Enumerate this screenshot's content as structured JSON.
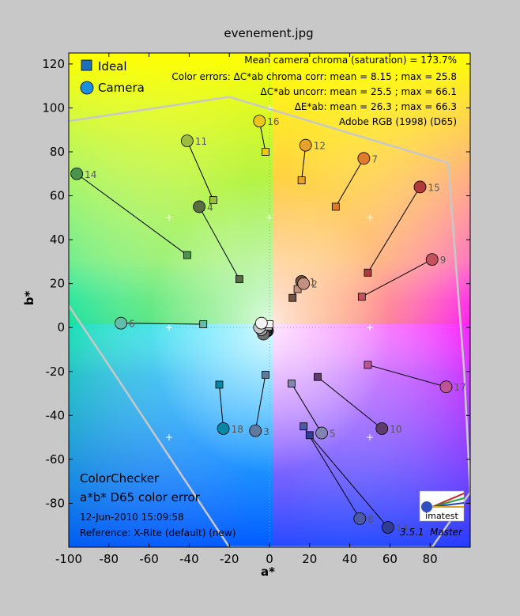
{
  "title": "evenement.jpg",
  "chart_data": {
    "type": "scatter",
    "xlabel": "a*",
    "ylabel": "b*",
    "xlim": [
      -100,
      100
    ],
    "ylim": [
      -100,
      125
    ],
    "xticks": [
      -100,
      -80,
      -60,
      -40,
      -20,
      0,
      20,
      40,
      60,
      80
    ],
    "yticks": [
      -80,
      -60,
      -40,
      -20,
      0,
      20,
      40,
      60,
      80,
      100,
      120
    ],
    "legend": {
      "position": "top-left",
      "items": [
        {
          "name": "Ideal",
          "marker": "square",
          "color": "#1a6fbf"
        },
        {
          "name": "Camera",
          "marker": "circle",
          "color": "#1a8fe0"
        }
      ]
    },
    "annotations": [
      "Mean camera chroma (saturation) = 173.7%",
      "Color errors: ΔC*ab chroma corr:  mean = 8.15 ;  max = 25.8",
      "ΔC*ab uncorr:  mean = 25.5 ;  max = 66.1",
      "ΔE*ab:  mean = 26.3 ;  max = 66.3",
      "Adobe RGB (1998) (D65)"
    ],
    "patches": [
      {
        "id": "",
        "ideal": [
          -1.5,
          -1.5
        ],
        "camera": [
          -1,
          -1.5
        ],
        "color": "#2a2a2a"
      },
      {
        "id": "",
        "ideal": [
          -1,
          -1
        ],
        "camera": [
          -2,
          -2
        ],
        "color": "#4a4a4a"
      },
      {
        "id": "",
        "ideal": [
          -1,
          -0.5
        ],
        "camera": [
          -3,
          -3
        ],
        "color": "#6e6e6e"
      },
      {
        "id": "",
        "ideal": [
          -1,
          0
        ],
        "camera": [
          -4,
          -1
        ],
        "color": "#9a9a9a"
      },
      {
        "id": "",
        "ideal": [
          -0.5,
          0.5
        ],
        "camera": [
          -5,
          0
        ],
        "color": "#c8c8c8"
      },
      {
        "id": "",
        "ideal": [
          0,
          1.5
        ],
        "camera": [
          -4,
          2
        ],
        "color": "#f2f2f2"
      },
      {
        "id": "1",
        "ideal": [
          11.5,
          13.5
        ],
        "camera": [
          16,
          21
        ],
        "color": "#73523f"
      },
      {
        "id": "2",
        "ideal": [
          14,
          17.5
        ],
        "camera": [
          17,
          20
        ],
        "color": "#c2917f"
      },
      {
        "id": "3",
        "ideal": [
          -2,
          -21.5
        ],
        "camera": [
          -7,
          -47
        ],
        "color": "#5f7a9d"
      },
      {
        "id": "4",
        "ideal": [
          -15,
          22
        ],
        "camera": [
          -35,
          55
        ],
        "color": "#5a6c41"
      },
      {
        "id": "5",
        "ideal": [
          11,
          -25.5
        ],
        "camera": [
          26,
          -48
        ],
        "color": "#8183b1"
      },
      {
        "id": "6",
        "ideal": [
          -33,
          1.5
        ],
        "camera": [
          -74,
          2
        ],
        "color": "#64bdaa"
      },
      {
        "id": "7",
        "ideal": [
          33,
          55
        ],
        "camera": [
          47,
          77
        ],
        "color": "#de7b2c"
      },
      {
        "id": "8",
        "ideal": [
          17,
          -45
        ],
        "camera": [
          45,
          -87
        ],
        "color": "#4a5aa6"
      },
      {
        "id": "9",
        "ideal": [
          46,
          14
        ],
        "camera": [
          81,
          31
        ],
        "color": "#c1535f"
      },
      {
        "id": "10",
        "ideal": [
          24,
          -22.5
        ],
        "camera": [
          56,
          -46
        ],
        "color": "#5e3c6c"
      },
      {
        "id": "11",
        "ideal": [
          -28,
          58
        ],
        "camera": [
          -41,
          85
        ],
        "color": "#9dbd3f"
      },
      {
        "id": "12",
        "ideal": [
          16,
          67
        ],
        "camera": [
          18,
          83
        ],
        "color": "#e7a22b"
      },
      {
        "id": "13",
        "ideal": [
          20,
          -49
        ],
        "camera": [
          59,
          -91
        ],
        "color": "#313c95"
      },
      {
        "id": "14",
        "ideal": [
          -41,
          33
        ],
        "camera": [
          -96,
          70
        ],
        "color": "#46954a"
      },
      {
        "id": "15",
        "ideal": [
          49,
          25
        ],
        "camera": [
          75,
          64
        ],
        "color": "#b03a3c"
      },
      {
        "id": "16",
        "ideal": [
          -2,
          80
        ],
        "camera": [
          -5,
          94
        ],
        "color": "#ecc61b"
      },
      {
        "id": "17",
        "ideal": [
          49,
          -17
        ],
        "camera": [
          88,
          -27
        ],
        "color": "#bc5593"
      },
      {
        "id": "18",
        "ideal": [
          -25,
          -26
        ],
        "camera": [
          -23,
          -46
        ],
        "color": "#0987a3"
      }
    ],
    "gamut": [
      [
        -100,
        94
      ],
      [
        -20,
        105
      ],
      [
        89,
        75
      ],
      [
        97,
        -20
      ],
      [
        100,
        -75
      ],
      [
        81,
        -100
      ],
      [
        -20,
        -100
      ],
      [
        -78,
        -20
      ],
      [
        -100,
        10
      ]
    ]
  },
  "bottom_left": {
    "line1": "ColorChecker",
    "line2": "a*b* D65 color error",
    "date": "12-Jun-2010 15:09:58",
    "reference": "Reference: X-Rite (default) (new)"
  },
  "footer": {
    "logo_text": "imatest",
    "version": "3.5.1",
    "edition": "Master"
  }
}
